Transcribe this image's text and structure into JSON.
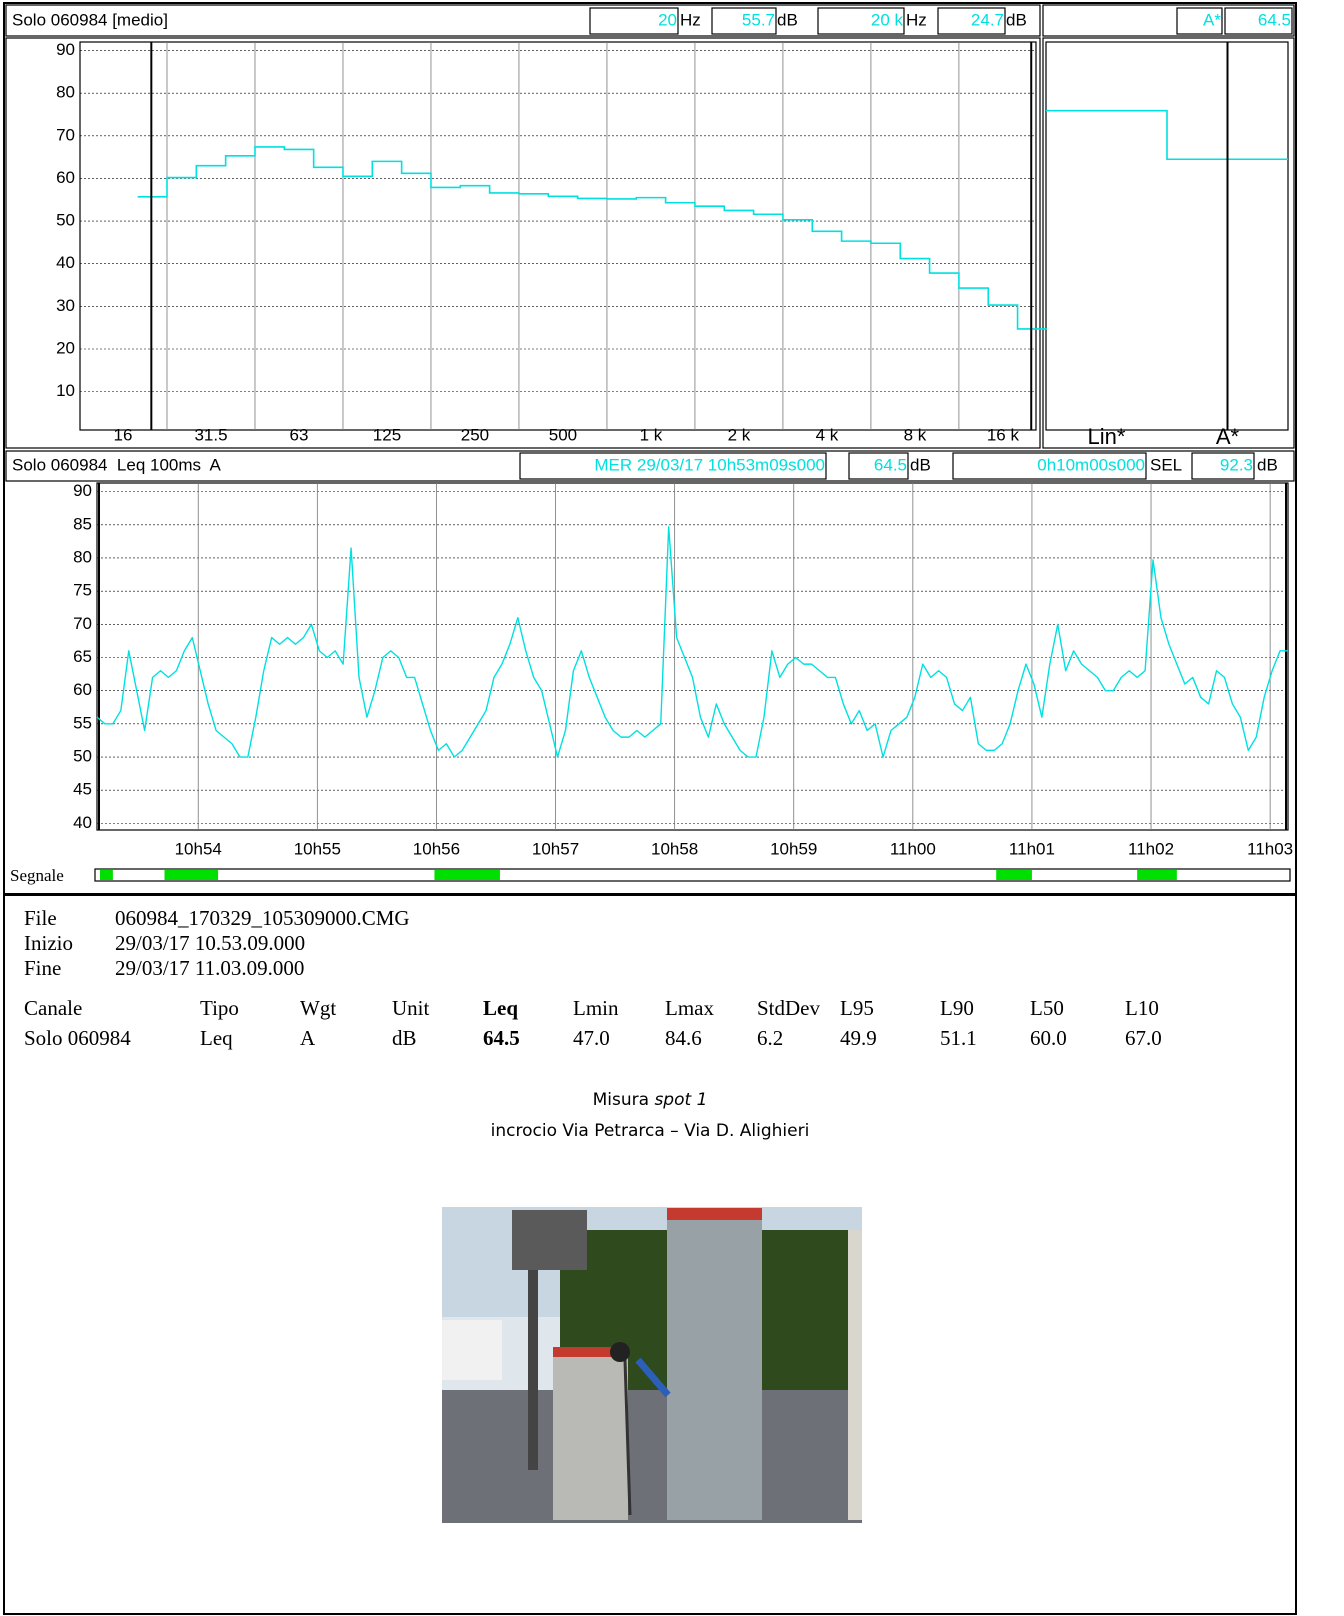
{
  "chart_data": [
    {
      "type": "step",
      "title": "Solo 060984 [medio]",
      "cursor_freq": [
        "20",
        "20 k"
      ],
      "freq_unit": "Hz",
      "level_unit": "dB",
      "categories": [
        "16",
        null,
        null,
        "31.5",
        null,
        null,
        "63",
        null,
        null,
        "125",
        null,
        null,
        "250",
        null,
        null,
        "500",
        null,
        null,
        "1 k",
        null,
        null,
        "2 k",
        null,
        null,
        "4 k",
        null,
        null,
        "8 k",
        null,
        null,
        "16 k",
        null
      ],
      "values": [
        null,
        55.7,
        60.2,
        63.0,
        65.3,
        67.4,
        66.8,
        62.6,
        60.5,
        64.0,
        61.2,
        57.9,
        58.3,
        56.6,
        56.4,
        55.8,
        55.3,
        55.2,
        55.5,
        54.3,
        53.5,
        52.5,
        51.6,
        50.3,
        47.6,
        45.3,
        44.8,
        41.2,
        37.8,
        34.3,
        30.3,
        24.7
      ],
      "color": "#00e0e0",
      "ylim": [
        1,
        92
      ],
      "yticks": [
        10,
        20,
        30,
        40,
        50,
        60,
        70,
        80,
        90
      ],
      "grid": true
    },
    {
      "type": "step",
      "categories": [
        "Lin*",
        "A*"
      ],
      "values": [
        75.9,
        64.5
      ],
      "color": "#00e0e0",
      "ylim": [
        1,
        92
      ]
    },
    {
      "type": "line",
      "title": "Solo 060984  Leq 100ms  A",
      "start": "MER 29/03/17 10h53m09s000",
      "leq": 64.5,
      "level_unit": "dB",
      "duration": "0h10m00s000",
      "sel_label": "SEL",
      "sel": 92.3,
      "x": [
        0,
        4,
        8,
        12,
        16,
        20,
        24,
        28,
        32,
        36,
        40,
        44,
        48,
        52,
        56,
        60,
        64,
        68,
        72,
        76,
        80,
        84,
        88,
        92,
        96,
        100,
        104,
        108,
        112,
        116,
        120,
        124,
        128,
        132,
        136,
        140,
        144,
        148,
        152,
        156,
        160,
        164,
        168,
        172,
        176,
        180,
        184,
        188,
        192,
        196,
        200,
        204,
        208,
        212,
        216,
        220,
        224,
        228,
        232,
        236,
        240,
        244,
        248,
        252,
        256,
        260,
        264,
        268,
        272,
        276,
        280,
        284,
        288,
        292,
        296,
        300,
        304,
        308,
        312,
        316,
        320,
        324,
        328,
        332,
        336,
        340,
        344,
        348,
        352,
        356,
        360,
        364,
        368,
        372,
        376,
        380,
        384,
        388,
        392,
        396,
        400,
        404,
        408,
        412,
        416,
        420,
        424,
        428,
        432,
        436,
        440,
        444,
        448,
        452,
        456,
        460,
        464,
        468,
        472,
        476,
        480,
        484,
        488,
        492,
        496,
        500,
        504,
        508,
        512,
        516,
        520,
        524,
        528,
        532,
        536,
        540,
        544,
        548,
        552,
        556,
        560,
        564,
        568,
        572,
        576,
        580,
        584,
        588,
        592,
        596,
        600
      ],
      "series": [
        {
          "name": "Leq 100ms A",
          "color": "#00e0e0",
          "values": [
            56,
            55,
            55,
            57,
            66,
            60,
            54,
            62,
            63,
            62,
            63,
            66,
            68,
            63,
            58,
            54,
            53,
            52,
            50,
            50,
            56,
            63,
            68,
            67,
            68,
            67,
            68,
            70,
            66,
            65,
            66,
            64,
            81.5,
            62,
            56,
            60,
            65,
            66,
            65,
            62,
            62,
            58,
            54,
            51,
            52,
            50,
            51,
            53,
            55,
            57,
            62,
            64,
            67,
            71,
            66,
            62,
            60,
            55,
            50,
            54,
            63,
            66,
            62,
            59,
            56,
            54,
            53,
            53,
            54,
            53,
            54,
            55,
            84.7,
            68,
            65,
            62,
            56,
            53,
            58,
            55,
            53,
            51,
            50,
            50,
            56,
            66,
            62,
            64,
            65,
            64,
            64,
            63,
            62,
            62,
            58,
            55,
            57,
            54,
            55,
            50,
            54,
            55,
            56,
            59,
            64,
            62,
            63,
            62,
            58,
            57,
            59,
            52,
            51,
            51,
            52,
            55,
            60,
            64,
            61,
            56,
            64,
            70,
            63,
            66,
            64,
            63,
            62,
            60,
            60,
            62,
            63,
            62,
            63,
            79.7,
            71,
            67,
            64,
            61,
            62,
            59,
            58,
            63,
            62,
            58,
            56,
            51,
            53,
            59,
            63,
            66,
            66
          ]
        }
      ],
      "xlim": [
        0,
        600
      ],
      "xticks": [
        {
          "value": 51,
          "label": "10h54"
        },
        {
          "value": 111,
          "label": "10h55"
        },
        {
          "value": 171,
          "label": "10h56"
        },
        {
          "value": 231,
          "label": "10h57"
        },
        {
          "value": 291,
          "label": "10h58"
        },
        {
          "value": 351,
          "label": "10h59"
        },
        {
          "value": 411,
          "label": "11h00"
        },
        {
          "value": 471,
          "label": "11h01"
        },
        {
          "value": 531,
          "label": "11h02"
        },
        {
          "value": 591,
          "label": "11h03"
        }
      ],
      "ylim": [
        39,
        91.3
      ],
      "yticks": [
        40,
        45,
        50,
        55,
        60,
        65,
        70,
        75,
        80,
        85,
        90
      ],
      "grid": true,
      "signal": {
        "label": "Segnale",
        "color": "#00e000",
        "segments": [
          [
            1.5,
            8
          ],
          [
            34,
            61
          ],
          [
            170,
            203
          ],
          [
            453,
            471
          ],
          [
            524,
            544
          ]
        ]
      }
    }
  ],
  "info": [
    [
      "File",
      "060984_170329_105309000.CMG"
    ],
    [
      "Inizio",
      "29/03/17 10.53.09.000"
    ],
    [
      "Fine",
      "29/03/17 11.03.09.000"
    ]
  ],
  "table": {
    "header": [
      "Canale",
      "Tipo",
      "Wgt",
      "Unit",
      "Leq",
      "Lmin",
      "Lmax",
      "StdDev",
      "L95",
      "L90",
      "L50",
      "L10"
    ],
    "rows": [
      [
        "Solo 060984",
        "Leq",
        "A",
        "dB",
        "64.5",
        "47.0",
        "84.6",
        "6.2",
        "49.9",
        "51.1",
        "60.0",
        "67.0"
      ]
    ]
  },
  "caption": {
    "lead": "Misura",
    "italic": "spot 1",
    "place": "incrocio Via Petrarca – Via D. Alighieri"
  }
}
